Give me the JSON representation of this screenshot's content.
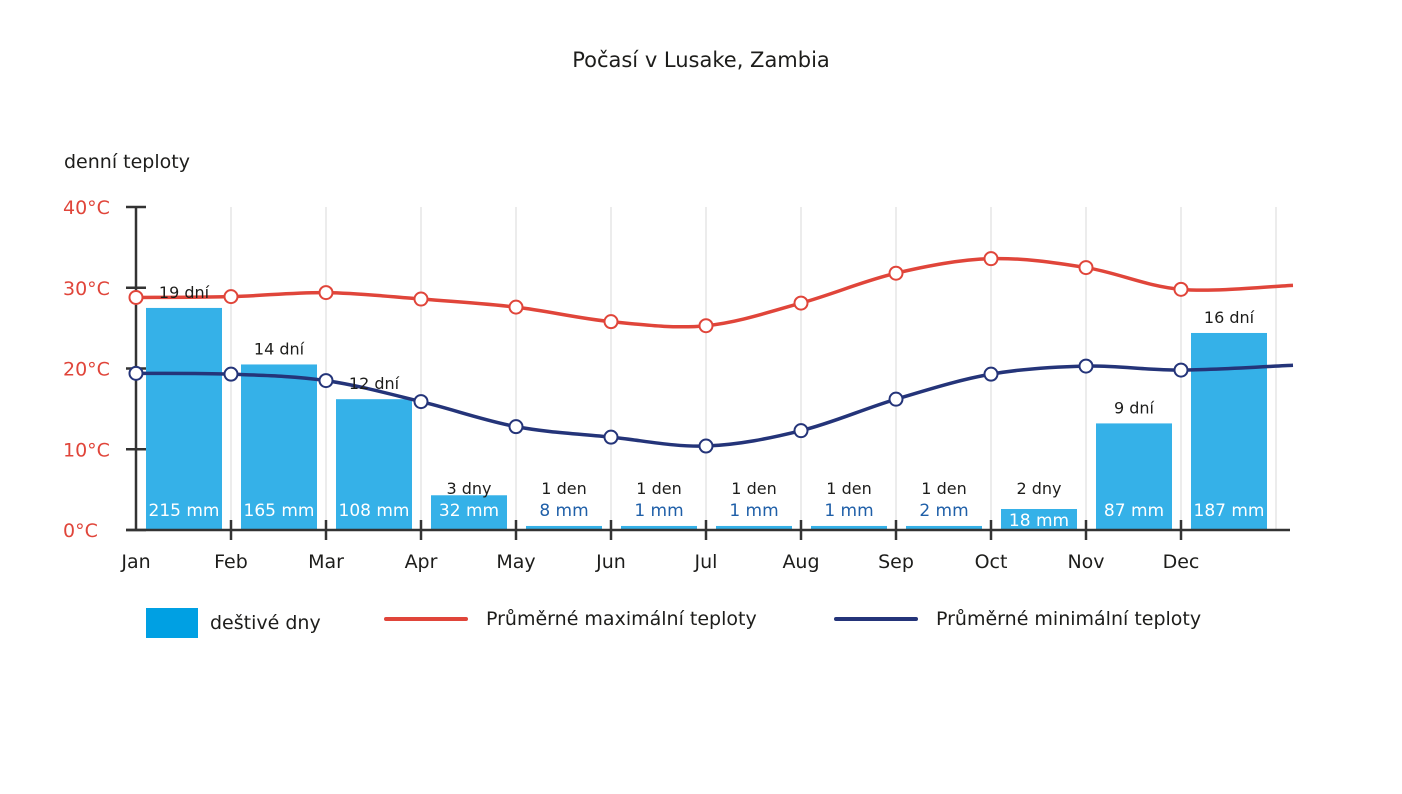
{
  "title": "Počasí v Lusake, Zambia",
  "y_axis_label": "denní teploty",
  "legend": {
    "rain": "deštivé dny",
    "max": "Průměrné maximální teploty",
    "min": "Průměrné minimální teploty"
  },
  "colors": {
    "bar": "#35b1e8",
    "max_line": "#e0453a",
    "min_line": "#243479",
    "axis": "#333333",
    "grid": "#d9d9d9",
    "tick_label": "#e0453a",
    "rain_label_light": "#ffffff",
    "rain_label_dark": "#1f5fa8"
  },
  "chart_data": {
    "type": "bar",
    "title": "Počasí v Lusake, Zambia",
    "ylabel": "denní teploty",
    "y_ticks": [
      "0°C",
      "10°C",
      "20°C",
      "30°C",
      "40°C"
    ],
    "ylim": [
      0,
      40
    ],
    "categories": [
      "Jan",
      "Feb",
      "Mar",
      "Apr",
      "May",
      "Jun",
      "Jul",
      "Aug",
      "Sep",
      "Oct",
      "Nov",
      "Dec"
    ],
    "rain_days_labels": [
      "19 dní",
      "14 dní",
      "12 dní",
      "3 dny",
      "1 den",
      "1 den",
      "1 den",
      "1 den",
      "1 den",
      "2 dny",
      "9 dní",
      "16 dní"
    ],
    "rain_days": [
      19,
      14,
      12,
      3,
      1,
      1,
      1,
      1,
      1,
      2,
      9,
      16
    ],
    "precipitation_labels": [
      "215 mm",
      "165 mm",
      "108 mm",
      "32 mm",
      "8 mm",
      "1 mm",
      "1 mm",
      "1 mm",
      "2 mm",
      "18 mm",
      "87 mm",
      "187 mm"
    ],
    "series": [
      {
        "name": "deštivé dny",
        "type": "bar",
        "values": [
          27.5,
          20.5,
          16.2,
          4.3,
          0.5,
          0.5,
          0.5,
          0.5,
          0.5,
          2.6,
          13.2,
          24.4
        ]
      },
      {
        "name": "Průměrné maximální teploty",
        "type": "line",
        "values": [
          28.8,
          28.9,
          29.4,
          28.6,
          27.6,
          25.8,
          25.3,
          28.1,
          31.8,
          33.6,
          32.5,
          29.8
        ]
      },
      {
        "name": "Průměrné minimální teploty",
        "type": "line",
        "values": [
          19.4,
          19.3,
          18.5,
          15.9,
          12.8,
          11.5,
          10.4,
          12.3,
          16.2,
          19.3,
          20.3,
          19.8
        ]
      }
    ],
    "line_end_values": {
      "max": 30.3,
      "min": 20.4
    }
  }
}
